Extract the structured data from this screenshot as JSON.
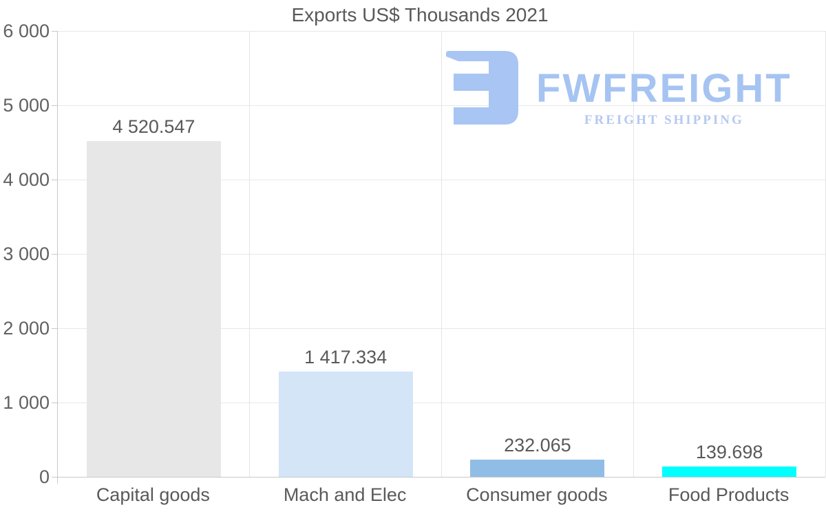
{
  "chart_data": {
    "type": "bar",
    "title": "Exports US$ Thousands 2021",
    "categories": [
      "Capital goods",
      "Mach and Elec",
      "Consumer goods",
      "Food Products"
    ],
    "values": [
      4520.547,
      1417.334,
      232.065,
      139.698
    ],
    "value_labels": [
      "4 520.547",
      "1 417.334",
      "232.065",
      "139.698"
    ],
    "bar_colors": [
      "#e7e7e7",
      "#d3e5f7",
      "#90bde6",
      "#00ffff"
    ],
    "xlabel": "",
    "ylabel": "",
    "ylim": [
      0,
      6000
    ],
    "ytick_step": 1000,
    "ytick_labels": [
      "0",
      "1 000",
      "2 000",
      "3 000",
      "4 000",
      "5 000",
      "6 000"
    ],
    "grid": "both",
    "data_labels": true,
    "legend": "none"
  },
  "logo": {
    "name": "FWFREIGHT",
    "tagline": "FREIGHT SHIPPING",
    "mark_color": "#a8c5f3",
    "text_color": "#a6c4f2",
    "tagline_color": "#b4c9f0"
  },
  "colors": {
    "background": "#ffffff",
    "title_text": "#595959",
    "tick_label_text": "#616161",
    "axis_line": "#c8c8c8",
    "gridline": "#e8e8e8"
  }
}
